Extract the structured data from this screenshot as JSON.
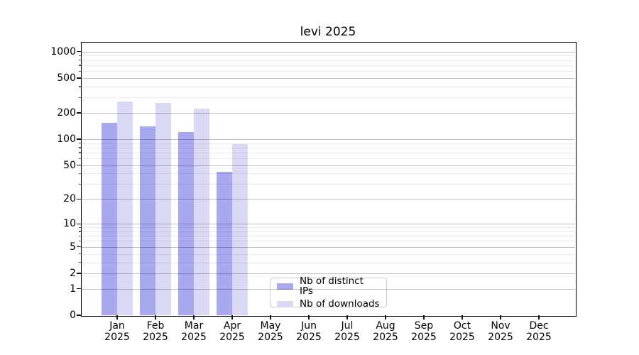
{
  "title": "levi 2025",
  "chart_data": {
    "type": "bar",
    "title": "levi 2025",
    "categories": [
      "Jan",
      "Feb",
      "Mar",
      "Apr",
      "May",
      "Jun",
      "Jul",
      "Aug",
      "Sep",
      "Oct",
      "Nov",
      "Dec"
    ],
    "year_label": "2025",
    "series": [
      {
        "name": "Nb of distinct IPs",
        "color": "#a8a8ef",
        "values": [
          155,
          141,
          120,
          42,
          0,
          0,
          0,
          0,
          0,
          0,
          0,
          0
        ]
      },
      {
        "name": "Nb of downloads",
        "color": "#d9d9f6",
        "values": [
          272,
          259,
          226,
          88,
          0,
          0,
          0,
          0,
          0,
          0,
          0,
          0
        ]
      }
    ],
    "yscale": "log1p",
    "yticks": [
      0,
      1,
      2,
      5,
      10,
      20,
      50,
      100,
      200,
      500,
      1000
    ],
    "ylim": [
      0,
      1293
    ],
    "xlabel": "",
    "ylabel": "",
    "grid": "horizontal major+minor, drawn above bars",
    "legend": {
      "position": "bottom-center"
    }
  }
}
